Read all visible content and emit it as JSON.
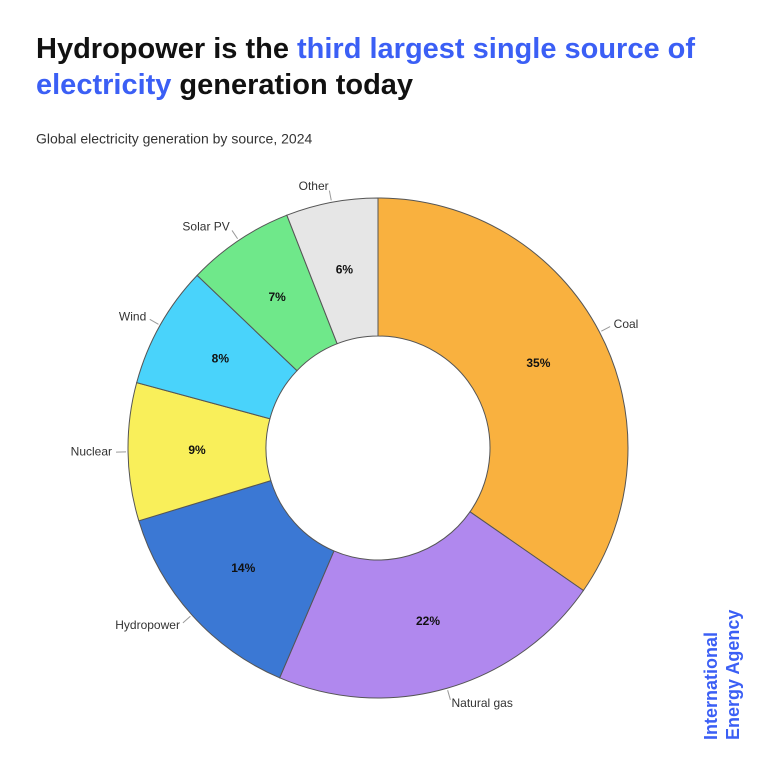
{
  "chart_data": {
    "type": "donut",
    "title": {
      "lines": [
        [
          {
            "text": "Hydropower is the",
            "highlight": false
          },
          {
            "text": "third largest single source of",
            "highlight": true
          }
        ],
        [
          {
            "text": "electricity",
            "highlight": true
          },
          {
            "text": "generation today",
            "highlight": false
          }
        ]
      ],
      "highlight_color": "#3b5ff5"
    },
    "subtitle": "Global electricity generation by source, 2024",
    "categories": [
      "Coal",
      "Natural gas",
      "Hydropower",
      "Nuclear",
      "Wind",
      "Solar PV",
      "Other"
    ],
    "values": [
      35,
      22,
      14,
      9,
      8,
      7,
      6
    ],
    "value_labels": [
      "35%",
      "22%",
      "14%",
      "9%",
      "8%",
      "7%",
      "6%"
    ],
    "colors": [
      "#f9b13f",
      "#b088ee",
      "#3b78d4",
      "#f9ef5a",
      "#49d3fb",
      "#6fe88a",
      "#e6e6e6"
    ],
    "source": [
      "International",
      "Energy Agency"
    ]
  }
}
